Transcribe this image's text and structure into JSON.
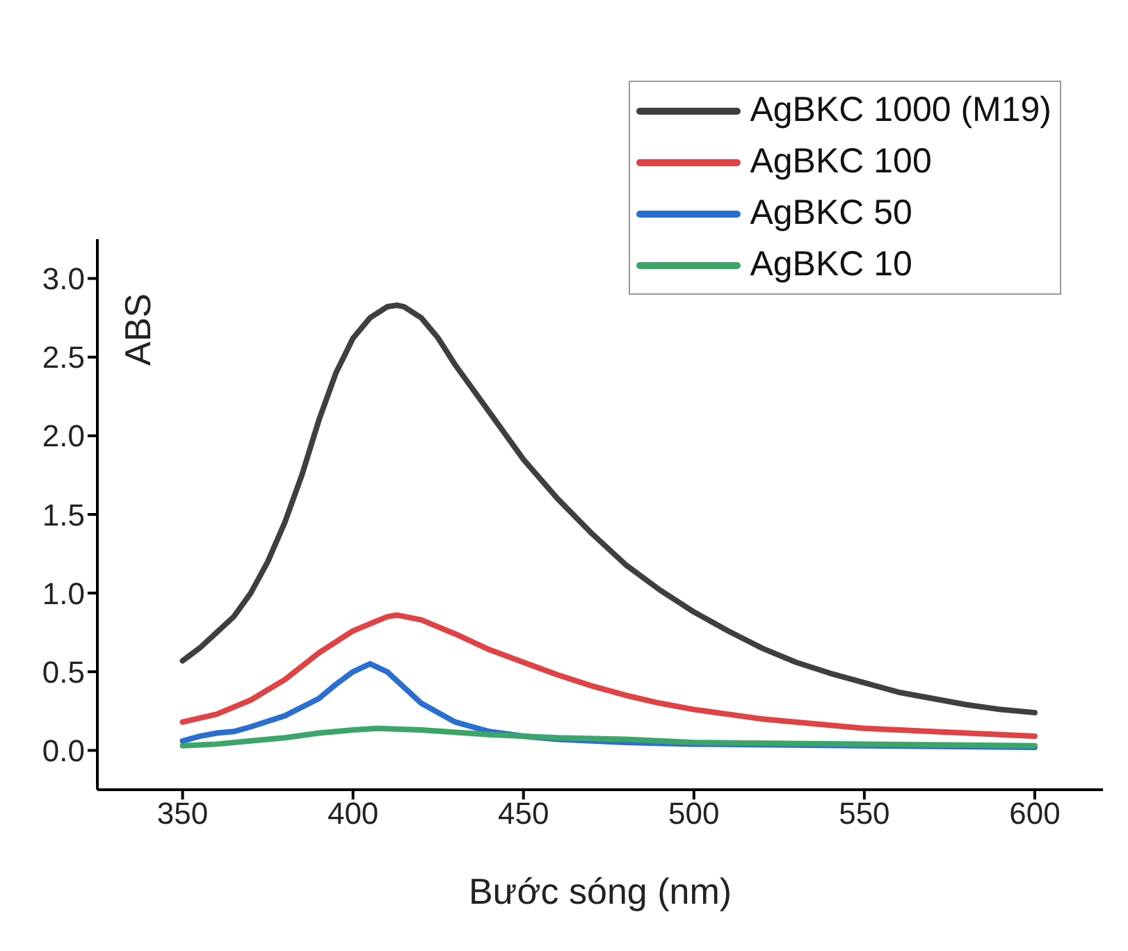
{
  "chart_data": {
    "type": "line",
    "xlabel": "Bước sóng (nm)",
    "ylabel": "ABS",
    "xlim": [
      325,
      620
    ],
    "xticks": [
      350,
      400,
      450,
      500,
      550,
      600
    ],
    "ylim": [
      -0.25,
      3.25
    ],
    "yticks": [
      {
        "value": 0,
        "label": "0.0"
      },
      {
        "value": 0.5,
        "label": "0.5"
      },
      {
        "value": 1,
        "label": "1.0"
      },
      {
        "value": 1.5,
        "label": "1.5"
      },
      {
        "value": 2,
        "label": "2.0"
      },
      {
        "value": 2.5,
        "label": "2.5"
      },
      {
        "value": 3,
        "label": "3.0"
      }
    ],
    "grid": false,
    "legend": "top right",
    "marker": "none",
    "line_style": "solid",
    "series": [
      {
        "name": "AgBKC 1000 (M19)",
        "color": "#3f3f3f",
        "x": [
          350,
          355,
          360,
          365,
          370,
          375,
          380,
          385,
          390,
          395,
          400,
          405,
          410,
          413,
          415,
          420,
          425,
          430,
          440,
          450,
          460,
          470,
          480,
          490,
          500,
          510,
          520,
          530,
          540,
          550,
          560,
          570,
          580,
          590,
          600
        ],
        "values": [
          0.57,
          0.65,
          0.75,
          0.85,
          1.0,
          1.2,
          1.45,
          1.75,
          2.1,
          2.4,
          2.62,
          2.75,
          2.82,
          2.83,
          2.82,
          2.75,
          2.62,
          2.45,
          2.15,
          1.85,
          1.6,
          1.38,
          1.18,
          1.02,
          0.88,
          0.76,
          0.65,
          0.56,
          0.49,
          0.43,
          0.37,
          0.33,
          0.29,
          0.26,
          0.24
        ]
      },
      {
        "name": "AgBKC 100",
        "color": "#df4345",
        "x": [
          350,
          360,
          370,
          380,
          390,
          400,
          410,
          413,
          420,
          430,
          440,
          450,
          460,
          470,
          480,
          490,
          500,
          510,
          520,
          530,
          540,
          550,
          560,
          570,
          580,
          590,
          600
        ],
        "values": [
          0.18,
          0.23,
          0.32,
          0.45,
          0.62,
          0.76,
          0.85,
          0.86,
          0.83,
          0.74,
          0.64,
          0.56,
          0.48,
          0.41,
          0.35,
          0.3,
          0.26,
          0.23,
          0.2,
          0.18,
          0.16,
          0.14,
          0.13,
          0.12,
          0.11,
          0.1,
          0.09
        ]
      },
      {
        "name": "AgBKC 50",
        "color": "#2a6fd0",
        "x": [
          350,
          355,
          360,
          365,
          370,
          380,
          390,
          395,
          400,
          405,
          410,
          415,
          420,
          430,
          440,
          450,
          460,
          470,
          480,
          500,
          550,
          600
        ],
        "values": [
          0.06,
          0.09,
          0.11,
          0.12,
          0.15,
          0.22,
          0.33,
          0.42,
          0.5,
          0.55,
          0.5,
          0.4,
          0.3,
          0.18,
          0.12,
          0.09,
          0.07,
          0.06,
          0.05,
          0.04,
          0.03,
          0.02
        ]
      },
      {
        "name": "AgBKC 10",
        "color": "#3ca66a",
        "x": [
          350,
          360,
          370,
          380,
          390,
          400,
          407,
          420,
          440,
          460,
          480,
          500,
          550,
          600
        ],
        "values": [
          0.03,
          0.04,
          0.06,
          0.08,
          0.11,
          0.13,
          0.14,
          0.13,
          0.1,
          0.08,
          0.07,
          0.05,
          0.04,
          0.03
        ]
      }
    ]
  }
}
